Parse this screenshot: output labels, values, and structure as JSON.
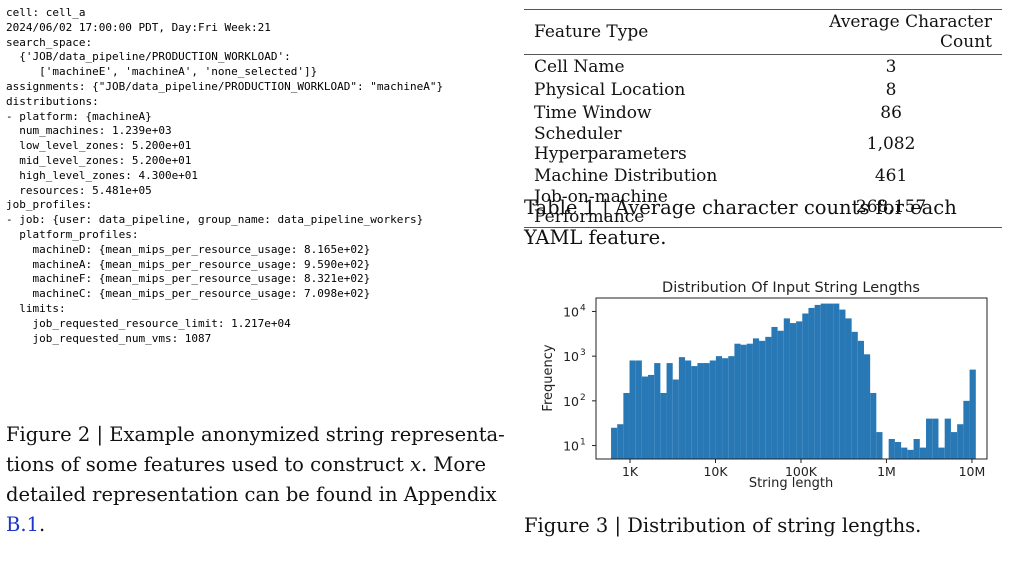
{
  "figure2": {
    "code_lines": [
      "cell: cell_a",
      "2024/06/02 17:00:00 PDT, Day:Fri Week:21",
      "search_space:",
      "  {'JOB/data_pipeline/PRODUCTION_WORKLOAD':",
      "     ['machineE', 'machineA', 'none_selected']}",
      "assignments: {\"JOB/data_pipeline/PRODUCTION_WORKLOAD\": \"machineA\"}",
      "distributions:",
      "- platform: {machineA}",
      "  num_machines: 1.239e+03",
      "  low_level_zones: 5.200e+01",
      "  mid_level_zones: 5.200e+01",
      "  high_level_zones: 4.300e+01",
      "  resources: 5.481e+05",
      "job_profiles:",
      "- job: {user: data_pipeline, group_name: data_pipeline_workers}",
      "  platform_profiles:",
      "    machineD: {mean_mips_per_resource_usage: 8.165e+02}",
      "    machineA: {mean_mips_per_resource_usage: 9.590e+02}",
      "    machineF: {mean_mips_per_resource_usage: 8.321e+02}",
      "    machineC: {mean_mips_per_resource_usage: 7.098e+02}",
      "  limits:",
      "    job_requested_resource_limit: 1.217e+04",
      "    job_requested_num_vms: 1087"
    ],
    "caption_prefix": "Figure 2 | Example anonymized string representa-tions of some features used to construct ",
    "caption_var": "x",
    "caption_mid": ". More detailed representation can be found in Appendix ",
    "caption_link": "B.1",
    "caption_end": "."
  },
  "table1": {
    "headers": [
      "Feature Type",
      "Average Character Count"
    ],
    "rows": [
      [
        "Cell Name",
        "3"
      ],
      [
        "Physical Location",
        "8"
      ],
      [
        "Time Window",
        "86"
      ],
      [
        "Scheduler Hyperparameters",
        "1,082"
      ],
      [
        "Machine Distribution",
        "461"
      ],
      [
        "Job-on-machine Performance",
        "268,157"
      ]
    ],
    "caption": "Table 1 | Average character counts for each YAML feature."
  },
  "figure3": {
    "caption": "Figure 3 | Distribution of string lengths."
  },
  "chart_data": {
    "type": "bar",
    "title": "Distribution Of Input String Lengths",
    "xlabel": "String length",
    "ylabel": "Frequency",
    "x_scale": "log",
    "y_scale": "log",
    "xlim": [
      400,
      15000000
    ],
    "ylim": [
      5,
      20000
    ],
    "x_ticks": [
      {
        "value": 1000,
        "label": "1K"
      },
      {
        "value": 10000,
        "label": "10K"
      },
      {
        "value": 100000,
        "label": "100K"
      },
      {
        "value": 1000000,
        "label": "1M"
      },
      {
        "value": 10000000,
        "label": "10M"
      }
    ],
    "y_ticks": [
      {
        "value": 10,
        "base": "10",
        "exp": "1"
      },
      {
        "value": 100,
        "base": "10",
        "exp": "2"
      },
      {
        "value": 1000,
        "base": "10",
        "exp": "3"
      },
      {
        "value": 10000,
        "base": "10",
        "exp": "4"
      }
    ],
    "bar_color": "#2878b5",
    "bins": [
      {
        "x0": 600,
        "x1": 708,
        "value": 25
      },
      {
        "x0": 708,
        "x1": 836,
        "value": 30
      },
      {
        "x0": 836,
        "x1": 987,
        "value": 150
      },
      {
        "x0": 987,
        "x1": 1165,
        "value": 800
      },
      {
        "x0": 1165,
        "x1": 1376,
        "value": 800
      },
      {
        "x0": 1376,
        "x1": 1624,
        "value": 350
      },
      {
        "x0": 1624,
        "x1": 1918,
        "value": 380
      },
      {
        "x0": 1918,
        "x1": 2265,
        "value": 700
      },
      {
        "x0": 2265,
        "x1": 2675,
        "value": 150
      },
      {
        "x0": 2675,
        "x1": 3158,
        "value": 700
      },
      {
        "x0": 3158,
        "x1": 3729,
        "value": 300
      },
      {
        "x0": 3729,
        "x1": 4403,
        "value": 950
      },
      {
        "x0": 4403,
        "x1": 5199,
        "value": 800
      },
      {
        "x0": 5199,
        "x1": 6139,
        "value": 600
      },
      {
        "x0": 6139,
        "x1": 7249,
        "value": 700
      },
      {
        "x0": 7249,
        "x1": 8560,
        "value": 700
      },
      {
        "x0": 8560,
        "x1": 10108,
        "value": 800
      },
      {
        "x0": 10108,
        "x1": 11935,
        "value": 1000
      },
      {
        "x0": 11935,
        "x1": 14093,
        "value": 900
      },
      {
        "x0": 14093,
        "x1": 16641,
        "value": 1000
      },
      {
        "x0": 16641,
        "x1": 19650,
        "value": 1900
      },
      {
        "x0": 19650,
        "x1": 23203,
        "value": 1800
      },
      {
        "x0": 23203,
        "x1": 27398,
        "value": 1900
      },
      {
        "x0": 27398,
        "x1": 32352,
        "value": 2500
      },
      {
        "x0": 32352,
        "x1": 38201,
        "value": 2200
      },
      {
        "x0": 38201,
        "x1": 45108,
        "value": 2700
      },
      {
        "x0": 45108,
        "x1": 53264,
        "value": 4500
      },
      {
        "x0": 53264,
        "x1": 62894,
        "value": 3700
      },
      {
        "x0": 62894,
        "x1": 74266,
        "value": 7000
      },
      {
        "x0": 74266,
        "x1": 87693,
        "value": 5500
      },
      {
        "x0": 87693,
        "x1": 103549,
        "value": 6000
      },
      {
        "x0": 103549,
        "x1": 122271,
        "value": 9000
      },
      {
        "x0": 122271,
        "x1": 144378,
        "value": 12000
      },
      {
        "x0": 144378,
        "x1": 170483,
        "value": 14000
      },
      {
        "x0": 170483,
        "x1": 201307,
        "value": 15000
      },
      {
        "x0": 201307,
        "x1": 237705,
        "value": 15000
      },
      {
        "x0": 237705,
        "x1": 280683,
        "value": 15000
      },
      {
        "x0": 280683,
        "x1": 331433,
        "value": 11000
      },
      {
        "x0": 331433,
        "x1": 391357,
        "value": 7000
      },
      {
        "x0": 391357,
        "x1": 462117,
        "value": 3500
      },
      {
        "x0": 462117,
        "x1": 545671,
        "value": 2200
      },
      {
        "x0": 545671,
        "x1": 644332,
        "value": 1100
      },
      {
        "x0": 644332,
        "x1": 760832,
        "value": 150
      },
      {
        "x0": 760832,
        "x1": 898396,
        "value": 20
      },
      {
        "x0": 1061000,
        "x1": 1255000,
        "value": 14
      },
      {
        "x0": 1255000,
        "x1": 1484000,
        "value": 12
      },
      {
        "x0": 1484000,
        "x1": 1755000,
        "value": 9
      },
      {
        "x0": 1755000,
        "x1": 2075000,
        "value": 8
      },
      {
        "x0": 2075000,
        "x1": 2454000,
        "value": 14
      },
      {
        "x0": 2454000,
        "x1": 2902000,
        "value": 9
      },
      {
        "x0": 2902000,
        "x1": 3432000,
        "value": 40
      },
      {
        "x0": 3432000,
        "x1": 4058000,
        "value": 40
      },
      {
        "x0": 4058000,
        "x1": 4799000,
        "value": 9
      },
      {
        "x0": 4799000,
        "x1": 5676000,
        "value": 40
      },
      {
        "x0": 5676000,
        "x1": 6712000,
        "value": 20
      },
      {
        "x0": 6712000,
        "x1": 7937000,
        "value": 30
      },
      {
        "x0": 7937000,
        "x1": 9385000,
        "value": 100
      },
      {
        "x0": 9385000,
        "x1": 11098000,
        "value": 500
      }
    ]
  }
}
